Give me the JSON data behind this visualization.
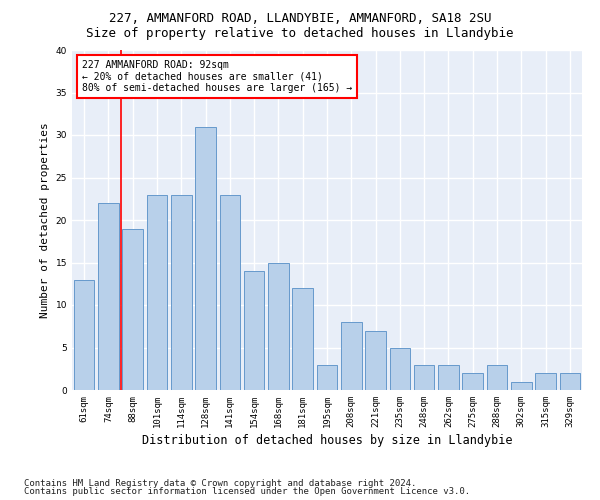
{
  "title1": "227, AMMANFORD ROAD, LLANDYBIE, AMMANFORD, SA18 2SU",
  "title2": "Size of property relative to detached houses in Llandybie",
  "xlabel": "Distribution of detached houses by size in Llandybie",
  "ylabel": "Number of detached properties",
  "categories": [
    "61sqm",
    "74sqm",
    "88sqm",
    "101sqm",
    "114sqm",
    "128sqm",
    "141sqm",
    "154sqm",
    "168sqm",
    "181sqm",
    "195sqm",
    "208sqm",
    "221sqm",
    "235sqm",
    "248sqm",
    "262sqm",
    "275sqm",
    "288sqm",
    "302sqm",
    "315sqm",
    "329sqm"
  ],
  "values": [
    13,
    22,
    19,
    23,
    23,
    31,
    23,
    14,
    15,
    12,
    3,
    8,
    7,
    5,
    3,
    3,
    2,
    3,
    1,
    2,
    2
  ],
  "bar_color": "#b8d0ea",
  "bar_edge_color": "#6699cc",
  "annotation_text": "227 AMMANFORD ROAD: 92sqm\n← 20% of detached houses are smaller (41)\n80% of semi-detached houses are larger (165) →",
  "annotation_box_color": "white",
  "annotation_box_edge_color": "red",
  "vline_color": "red",
  "vline_x": 1.5,
  "ylim": [
    0,
    40
  ],
  "yticks": [
    0,
    5,
    10,
    15,
    20,
    25,
    30,
    35,
    40
  ],
  "footer1": "Contains HM Land Registry data © Crown copyright and database right 2024.",
  "footer2": "Contains public sector information licensed under the Open Government Licence v3.0.",
  "bg_color": "#e8eef8",
  "grid_color": "white",
  "title1_fontsize": 9,
  "title2_fontsize": 9,
  "xlabel_fontsize": 8.5,
  "ylabel_fontsize": 8,
  "tick_fontsize": 6.5,
  "annotation_fontsize": 7,
  "footer_fontsize": 6.5
}
